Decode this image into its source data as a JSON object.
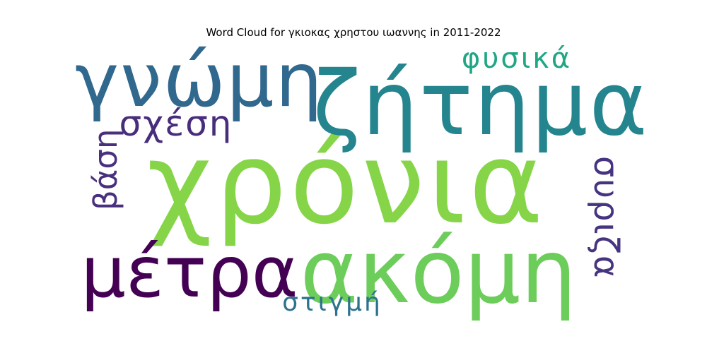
{
  "chart_data": {
    "type": "word_cloud",
    "title": "Word Cloud for γκιοκας χρηστου ιωαννης in 2011-2022",
    "background": "#ffffff",
    "colormap": "viridis",
    "words": [
      {
        "text": "χρόνια",
        "weight": 1.0,
        "color": "#86d549"
      },
      {
        "text": "ζήτημα",
        "weight": 0.72,
        "color": "#25858e"
      },
      {
        "text": "ακόμη",
        "weight": 0.7,
        "color": "#6ccd5a"
      },
      {
        "text": "γνώμη",
        "weight": 0.62,
        "color": "#31688e"
      },
      {
        "text": "μέτρα",
        "weight": 0.52,
        "color": "#440154"
      },
      {
        "text": "σχέση",
        "weight": 0.3,
        "color": "#472d7b"
      },
      {
        "text": "φυσικά",
        "weight": 0.26,
        "color": "#21a685"
      },
      {
        "text": "βάση",
        "weight": 0.26,
        "color": "#48307e"
      },
      {
        "text": "συριζα",
        "weight": 0.26,
        "color": "#463480"
      },
      {
        "text": "στιγμή",
        "weight": 0.2,
        "color": "#2c728e"
      }
    ]
  }
}
